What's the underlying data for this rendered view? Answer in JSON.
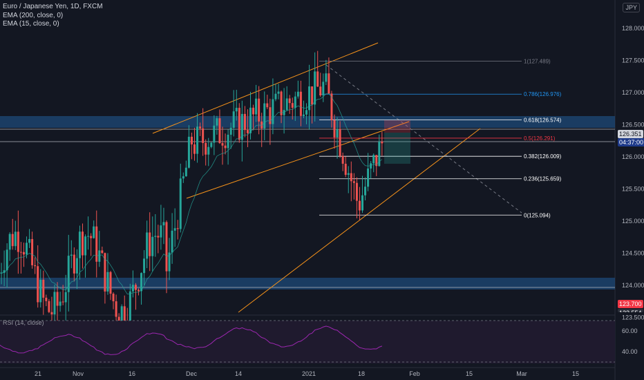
{
  "header": {
    "symbol_line": "Euro / Japanese Yen, 1D, FXCM",
    "ema200_label": "EMA (200, close, 0)",
    "ema15_label": "EMA (15, close, 0)",
    "currency": "JPY"
  },
  "rsi_panel": {
    "label": "RSI (14, close)",
    "tick_labels": [
      "60.00",
      "40.00"
    ]
  },
  "chart_data": {
    "type": "candlestick",
    "price_axis_ticks": [
      "128.000",
      "127.500",
      "127.000",
      "126.500",
      "126.000",
      "125.500",
      "125.000",
      "124.500",
      "124.000",
      "123.500"
    ],
    "x_tick_labels": [
      "21",
      "Nov",
      "16",
      "Dec",
      "14",
      "2021",
      "18",
      "Feb",
      "15",
      "Mar",
      "15"
    ],
    "fibonacci": [
      {
        "label": "1(127.489)",
        "value": 127.489,
        "color": "#787b86"
      },
      {
        "label": "0.786(126.976)",
        "value": 126.976,
        "color": "#2196f3"
      },
      {
        "label": "0.618(126.574)",
        "value": 126.574,
        "color": "#ffffff"
      },
      {
        "label": "0.5(126.291)",
        "value": 126.291,
        "color": "#f23645"
      },
      {
        "label": "0.382(126.009)",
        "value": 126.009,
        "color": "#ffffff"
      },
      {
        "label": "0.236(125.659)",
        "value": 125.659,
        "color": "#ffffff"
      },
      {
        "label": "0(125.094)",
        "value": 125.094,
        "color": "#ffffff"
      }
    ],
    "last_price": "126.351",
    "countdown": "04:37:00",
    "price_badge_red": "123.700",
    "price_badge_grey": "123.554",
    "colors": {
      "up": "#26a69a",
      "down": "#ef5350",
      "channel": "#f7931a",
      "zone": "#1e4a78"
    }
  }
}
